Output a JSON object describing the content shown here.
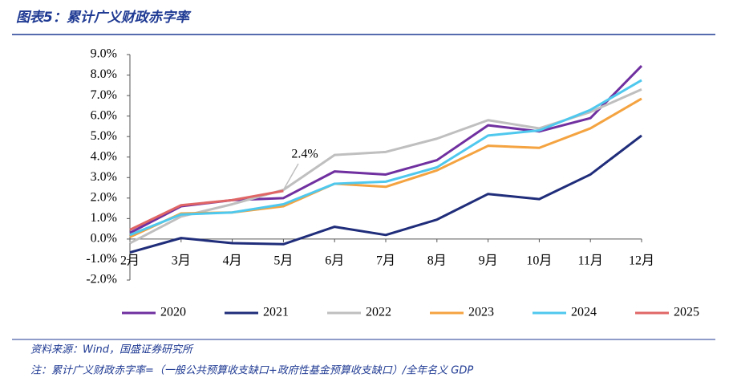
{
  "chart_data": {
    "type": "line",
    "title": "图表5：累计广义财政赤字率",
    "categories": [
      "2月",
      "3月",
      "4月",
      "5月",
      "6月",
      "7月",
      "8月",
      "9月",
      "10月",
      "11月",
      "12月"
    ],
    "series": [
      {
        "name": "2020",
        "color": "#7030a0",
        "values": [
          0.3,
          1.6,
          1.9,
          2.0,
          3.3,
          3.15,
          3.85,
          5.55,
          5.25,
          5.9,
          8.45
        ]
      },
      {
        "name": "2021",
        "color": "#1f2d7a",
        "values": [
          -0.65,
          0.05,
          -0.2,
          -0.25,
          0.6,
          0.2,
          0.95,
          2.2,
          1.95,
          3.15,
          5.05
        ]
      },
      {
        "name": "2022",
        "color": "#bfbfbf",
        "values": [
          -0.2,
          1.1,
          1.7,
          2.4,
          4.1,
          4.25,
          4.9,
          5.8,
          5.4,
          6.2,
          7.3
        ]
      },
      {
        "name": "2023",
        "color": "#f4a340",
        "values": [
          0.1,
          1.25,
          1.3,
          1.6,
          2.7,
          2.55,
          3.35,
          4.55,
          4.45,
          5.4,
          6.85
        ]
      },
      {
        "name": "2024",
        "color": "#4fc8ee",
        "values": [
          0.2,
          1.2,
          1.3,
          1.7,
          2.7,
          2.8,
          3.5,
          5.05,
          5.3,
          6.3,
          7.75
        ]
      },
      {
        "name": "2025",
        "color": "#e06666",
        "values": [
          0.45,
          1.65,
          1.9,
          2.35,
          null,
          null,
          null,
          null,
          null,
          null,
          null
        ]
      }
    ],
    "annotation": "2.4%",
    "ylim": [
      -2,
      9
    ],
    "yticks": [
      {
        "value": -2,
        "label": "-2.0%"
      },
      {
        "value": -1,
        "label": "-1.0%"
      },
      {
        "value": 0,
        "label": "0.0%"
      },
      {
        "value": 1,
        "label": "1.0%"
      },
      {
        "value": 2,
        "label": "2.0%"
      },
      {
        "value": 3,
        "label": "3.0%"
      },
      {
        "value": 4,
        "label": "4.0%"
      },
      {
        "value": 5,
        "label": "5.0%"
      },
      {
        "value": 6,
        "label": "6.0%"
      },
      {
        "value": 7,
        "label": "7.0%"
      },
      {
        "value": 8,
        "label": "8.0%"
      },
      {
        "value": 9,
        "label": "9.0%"
      }
    ],
    "source": "资料来源：Wind，国盛证券研究所",
    "note": "注：累计广义财政赤字率=（一般公共预算收支缺口+政府性基金预算收支缺口）/全年名义 GDP"
  }
}
